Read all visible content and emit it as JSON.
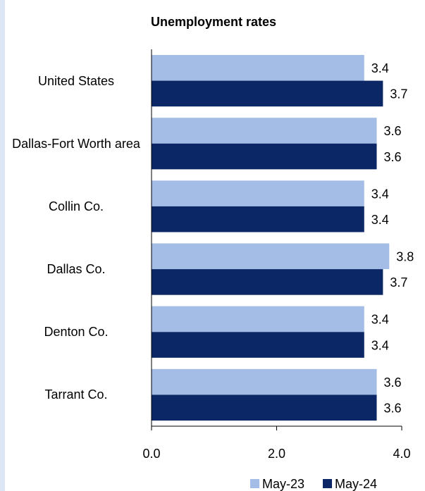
{
  "chart_data": {
    "type": "bar",
    "orientation": "horizontal",
    "title": "Unemployment rates",
    "categories": [
      "United States",
      "Dallas-Fort Worth area",
      "Collin Co.",
      "Dallas Co.",
      "Denton Co.",
      "Tarrant Co."
    ],
    "series": [
      {
        "name": "May-23",
        "color": "#a3bde6",
        "values": [
          3.4,
          3.6,
          3.4,
          3.8,
          3.4,
          3.6
        ]
      },
      {
        "name": "May-24",
        "color": "#0c2766",
        "values": [
          3.7,
          3.6,
          3.4,
          3.7,
          3.4,
          3.6
        ]
      }
    ],
    "xlim": [
      0,
      4
    ],
    "xticks": [
      {
        "value": 0,
        "label": "0.0"
      },
      {
        "value": 2,
        "label": "2.0"
      },
      {
        "value": 4,
        "label": "4.0"
      }
    ],
    "legend": "bottom"
  }
}
